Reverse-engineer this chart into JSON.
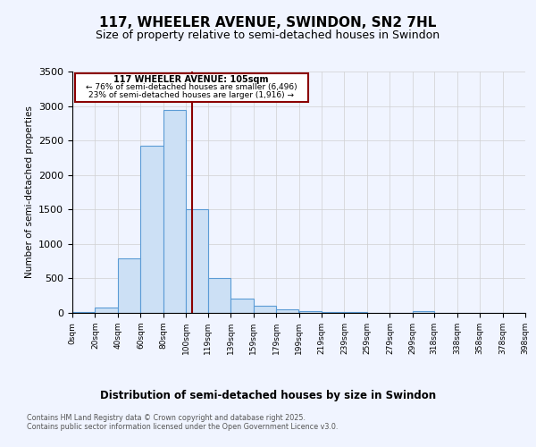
{
  "title_line1": "117, WHEELER AVENUE, SWINDON, SN2 7HL",
  "title_line2": "Size of property relative to semi-detached houses in Swindon",
  "xlabel": "Distribution of semi-detached houses by size in Swindon",
  "ylabel": "Number of semi-detached properties",
  "property_size": 105,
  "property_label": "117 WHEELER AVENUE: 105sqm",
  "pct_smaller": 76,
  "pct_larger": 23,
  "count_smaller": 6496,
  "count_larger": 1916,
  "bin_edges": [
    0,
    20,
    40,
    60,
    80,
    100,
    119,
    139,
    159,
    179,
    199,
    219,
    239,
    259,
    279,
    299,
    318,
    338,
    358,
    378,
    398
  ],
  "bin_counts": [
    10,
    75,
    790,
    2420,
    2940,
    1510,
    510,
    210,
    100,
    50,
    25,
    15,
    10,
    5,
    5,
    30,
    5,
    5,
    5,
    5
  ],
  "bar_facecolor": "#cce0f5",
  "bar_edgecolor": "#5b9bd5",
  "property_line_color": "#8b0000",
  "annotation_box_color": "#8b0000",
  "ylim": [
    0,
    3500
  ],
  "xlim": [
    0,
    398
  ],
  "grid_color": "#d0d0d0",
  "background_color": "#f0f4ff",
  "footer_text": "Contains HM Land Registry data © Crown copyright and database right 2025.\nContains public sector information licensed under the Open Government Licence v3.0."
}
